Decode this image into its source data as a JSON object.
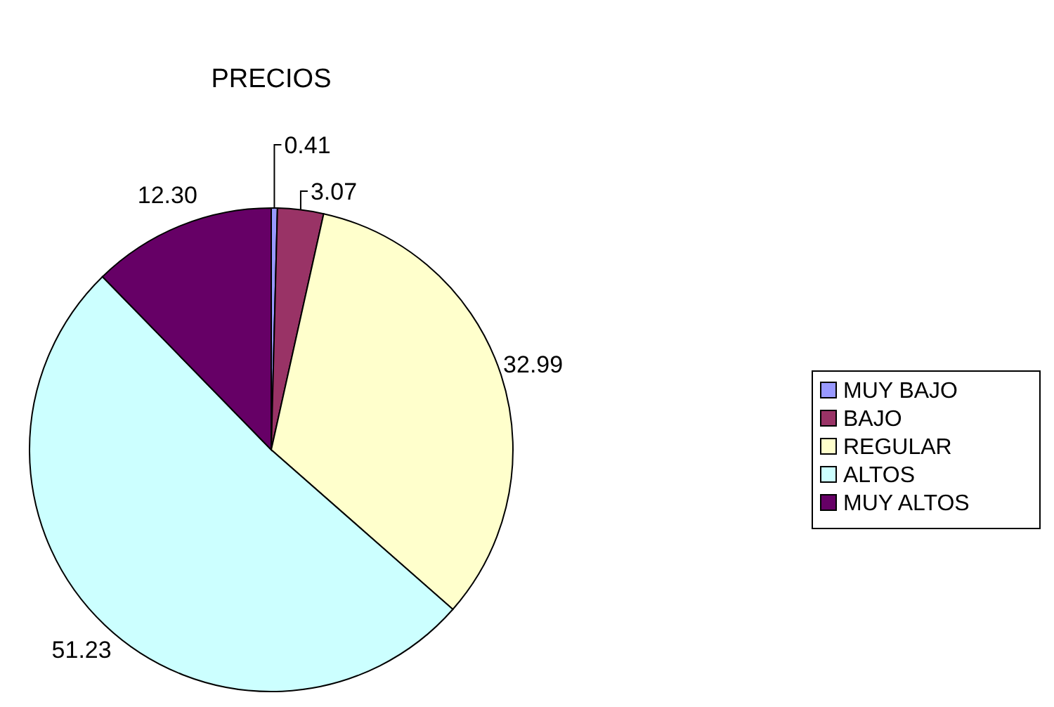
{
  "chart_data": {
    "type": "pie",
    "title": "PRECIOS",
    "categories": [
      "MUY BAJO",
      "BAJO",
      "REGULAR",
      "ALTOS",
      "MUY ALTOS"
    ],
    "values": [
      0.41,
      3.07,
      32.99,
      51.23,
      12.3
    ],
    "colors": [
      "#9999ff",
      "#993366",
      "#ffffcc",
      "#ccffff",
      "#660066"
    ],
    "value_labels": [
      "0.41",
      "3.07",
      "32.99",
      "51.23",
      "12.30"
    ],
    "legend": "right"
  }
}
